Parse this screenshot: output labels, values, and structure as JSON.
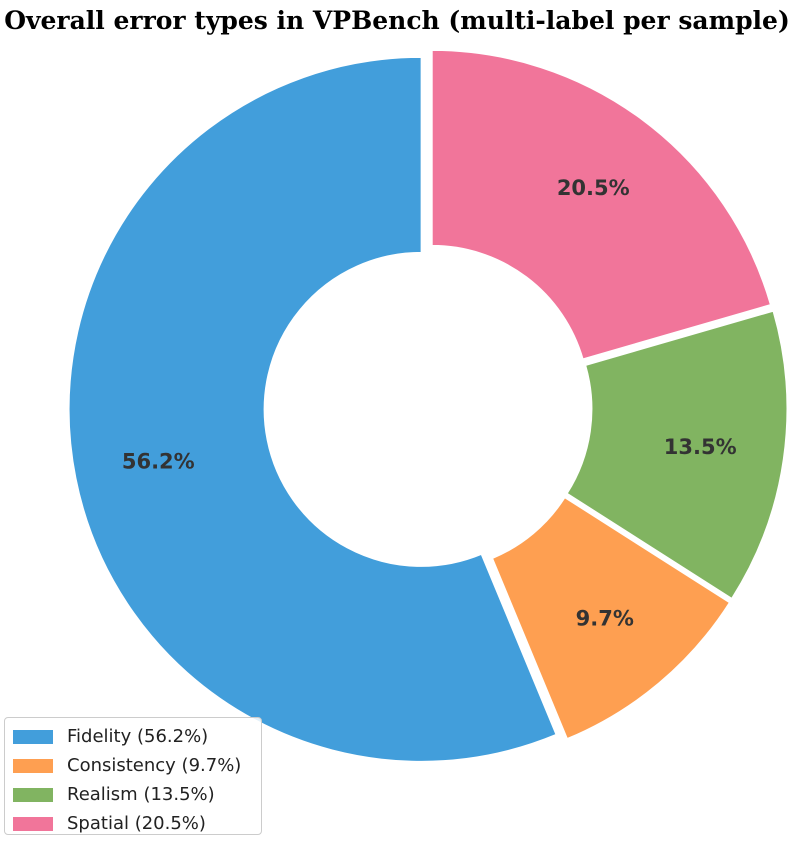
{
  "chart_data": {
    "type": "pie",
    "style": "donut",
    "title": "Overall error types in VPBench (multi-label per sample)",
    "categories": [
      "Fidelity",
      "Consistency",
      "Realism",
      "Spatial"
    ],
    "values": [
      56.2,
      9.7,
      13.5,
      20.5
    ],
    "value_labels": [
      "56.2%",
      "9.7%",
      "13.5%",
      "20.5%"
    ],
    "legend_labels": [
      "Fidelity (56.2%)",
      "Consistency (9.7%)",
      "Realism (13.5%)",
      "Spatial (20.5%)"
    ],
    "colors": [
      "#429edb",
      "#fe9f51",
      "#81b461",
      "#f1759a"
    ],
    "start_angle": 90,
    "direction": "counterclockwise",
    "legend_position": "lower-left",
    "grid": false
  }
}
